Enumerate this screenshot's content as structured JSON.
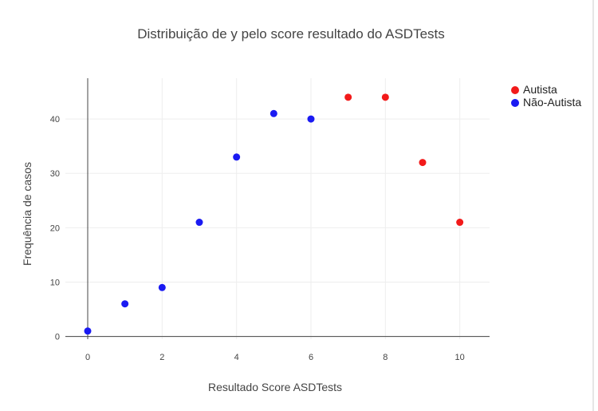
{
  "chart_data": {
    "type": "scatter",
    "title": "Distribuição de y pelo score resultado do ASDTests",
    "xlabel": "Resultado Score ASDTests",
    "ylabel": "Frequência de casos",
    "xlim": [
      -0.6,
      10.8
    ],
    "ylim": [
      -0.5,
      47.5
    ],
    "xticks": [
      0,
      2,
      4,
      6,
      8,
      10
    ],
    "yticks": [
      0,
      10,
      20,
      30,
      40
    ],
    "grid": true,
    "legend_position": "top-right",
    "series": [
      {
        "name": "Autista",
        "color": "#f21a1a",
        "x": [
          7,
          8,
          9,
          10
        ],
        "y": [
          44,
          44,
          32,
          21
        ]
      },
      {
        "name": "Não-Autista",
        "color": "#1a1af2",
        "x": [
          0,
          1,
          2,
          3,
          4,
          5,
          6
        ],
        "y": [
          1,
          6,
          9,
          21,
          33,
          41,
          40
        ]
      }
    ]
  }
}
